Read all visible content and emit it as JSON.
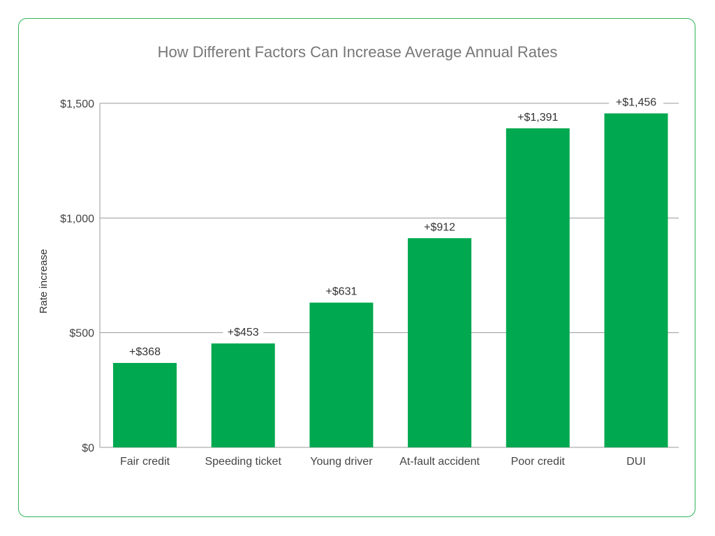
{
  "chart_data": {
    "type": "bar",
    "title": "How Different Factors Can Increase Average Annual Rates",
    "xlabel": "",
    "ylabel": "Rate increase",
    "ylim": [
      0,
      1500
    ],
    "yticks": [
      0,
      500,
      1000,
      1500
    ],
    "ytick_labels": [
      "$0",
      "$500",
      "$1,000",
      "$1,500"
    ],
    "grid": true,
    "categories": [
      "Fair credit",
      "Speeding ticket",
      "Young driver",
      "At-fault accident",
      "Poor credit",
      "DUI"
    ],
    "values": [
      368,
      453,
      631,
      912,
      1391,
      1456
    ],
    "data_labels": [
      "+$368",
      "+$453",
      "+$631",
      "+$912",
      "+$1,391",
      "+$1,456"
    ],
    "bar_color": "#00a84f",
    "border_color": "#2fb457"
  }
}
